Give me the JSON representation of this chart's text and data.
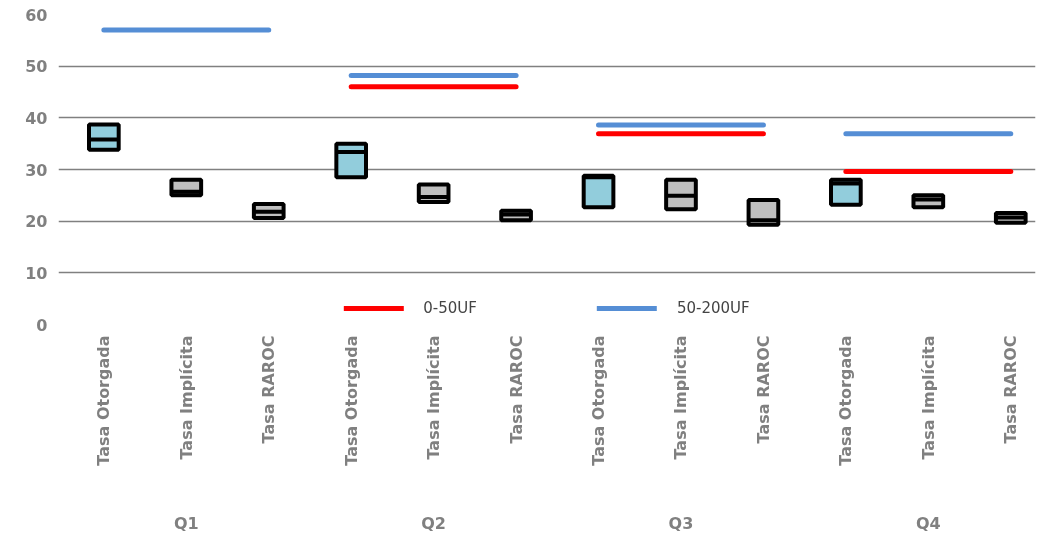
{
  "chart_data": {
    "type": "box",
    "categories": [
      "Tasa Otorgada",
      "Tasa Implícita",
      "Tasa RAROC",
      "Tasa Otorgada",
      "Tasa Implícita",
      "Tasa RAROC",
      "Tasa Otorgada",
      "Tasa Implícita",
      "Tasa RAROC",
      "Tasa Otorgada",
      "Tasa Implícita",
      "Tasa RAROC"
    ],
    "boxes": [
      {
        "low": 33.8,
        "q1": 33.8,
        "median": 35.8,
        "q3": 38.7,
        "high": 38.7
      },
      {
        "low": 25,
        "q1": 25,
        "median": 25.7,
        "q3": 28,
        "high": 28
      },
      {
        "low": 20.6,
        "q1": 20.6,
        "median": 21.8,
        "q3": 23.3,
        "high": 23.3
      },
      {
        "low": 28.5,
        "q1": 28.5,
        "median": 33.4,
        "q3": 35,
        "high": 35
      },
      {
        "low": 23.7,
        "q1": 23.7,
        "median": 24.7,
        "q3": 27.1,
        "high": 27.1
      },
      {
        "low": 20.2,
        "q1": 20.2,
        "median": 21.3,
        "q3": 22,
        "high": 22
      },
      {
        "low": 22.7,
        "q1": 22.7,
        "median": 28.5,
        "q3": 28.8,
        "high": 28.8
      },
      {
        "low": 22.3,
        "q1": 22.3,
        "median": 24.9,
        "q3": 28,
        "high": 28
      },
      {
        "low": 19.3,
        "q1": 19.3,
        "median": 20.2,
        "q3": 24.1,
        "high": 24.1
      },
      {
        "low": 23.2,
        "q1": 23.2,
        "median": 27.3,
        "q3": 28,
        "high": 28
      },
      {
        "low": 22.7,
        "q1": 22.7,
        "median": 24.2,
        "q3": 25,
        "high": 25
      },
      {
        "low": 19.7,
        "q1": 19.7,
        "median": 20.7,
        "q3": 21.6,
        "high": 21.6
      }
    ],
    "colors": [
      "#92cddc",
      "#bfbfbf",
      "#bfbfbf",
      "#92cddc",
      "#bfbfbf",
      "#bfbfbf",
      "#92cddc",
      "#bfbfbf",
      "#bfbfbf",
      "#92cddc",
      "#bfbfbf",
      "#bfbfbf"
    ],
    "series": [
      {
        "type": "line",
        "name": "0-50UF",
        "color": "#ff0000",
        "values": [
          null,
          null,
          null,
          46,
          46,
          46,
          36.9,
          36.9,
          36.9,
          29.6,
          29.6,
          29.6
        ]
      },
      {
        "type": "line",
        "name": "50-200UF",
        "color": "#558ed5",
        "values": [
          57,
          57,
          57,
          48.2,
          48.2,
          48.2,
          38.6,
          38.6,
          38.6,
          36.9,
          36.9,
          36.9
        ]
      }
    ],
    "ylim": [
      0,
      60
    ],
    "yticks": [
      0,
      10,
      20,
      30,
      40,
      50,
      60
    ],
    "grid": "y",
    "legend": "bottom",
    "annotations": [
      "Q1",
      "Q2",
      "Q3",
      "Q4"
    ]
  }
}
